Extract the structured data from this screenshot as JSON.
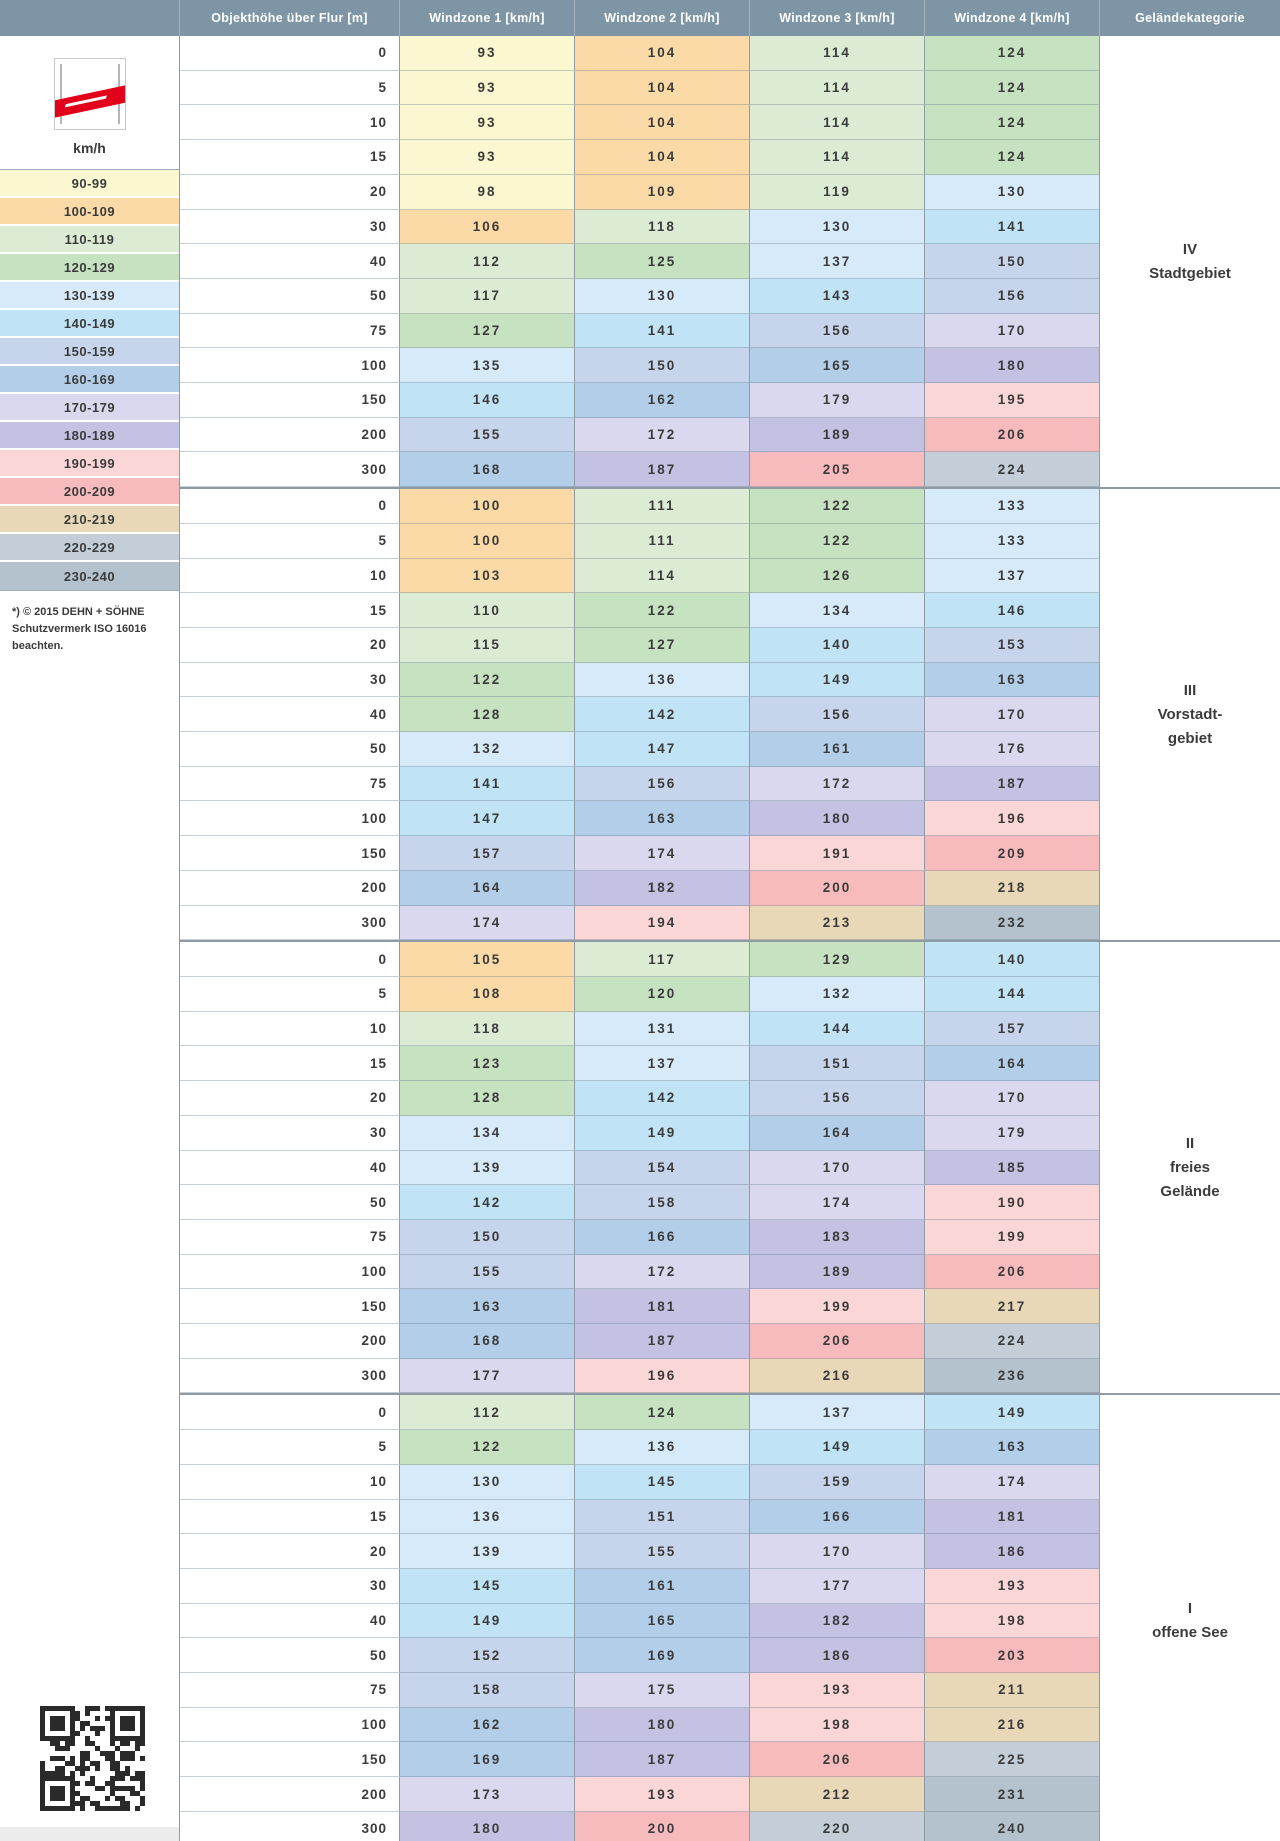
{
  "header": {
    "columns": [
      "Objekthöhe über Flur [m]",
      "Windzone 1 [km/h]",
      "Windzone 2 [km/h]",
      "Windzone 3 [km/h]",
      "Windzone 4 [km/h]",
      "Geländekategorie"
    ],
    "bg_color": "#7d95a4"
  },
  "sidebar": {
    "logo": "dehn-red-band-logo",
    "unit_label": "km/h",
    "legend": [
      {
        "range": "90-99",
        "min": 90,
        "max": 99,
        "color": "#fbf8d1"
      },
      {
        "range": "100-109",
        "min": 100,
        "max": 109,
        "color": "#fbdaa7"
      },
      {
        "range": "110-119",
        "min": 110,
        "max": 119,
        "color": "#dcecd4"
      },
      {
        "range": "120-129",
        "min": 120,
        "max": 129,
        "color": "#c6e2c1"
      },
      {
        "range": "130-139",
        "min": 130,
        "max": 139,
        "color": "#d7eafa"
      },
      {
        "range": "140-149",
        "min": 140,
        "max": 149,
        "color": "#c0e3f6"
      },
      {
        "range": "150-159",
        "min": 150,
        "max": 159,
        "color": "#c7d5ec"
      },
      {
        "range": "160-169",
        "min": 160,
        "max": 169,
        "color": "#b3cee9"
      },
      {
        "range": "170-179",
        "min": 170,
        "max": 179,
        "color": "#d9d8ef"
      },
      {
        "range": "180-189",
        "min": 180,
        "max": 189,
        "color": "#c4c2e2"
      },
      {
        "range": "190-199",
        "min": 190,
        "max": 199,
        "color": "#fbd6d7"
      },
      {
        "range": "200-209",
        "min": 200,
        "max": 209,
        "color": "#f8bbbd"
      },
      {
        "range": "210-219",
        "min": 210,
        "max": 219,
        "color": "#e9d8b8"
      },
      {
        "range": "220-229",
        "min": 220,
        "max": 229,
        "color": "#c3ced8"
      },
      {
        "range": "230-240",
        "min": 230,
        "max": 240,
        "color": "#b3c2cc"
      }
    ],
    "copyright_lines": [
      "*) © 2015 DEHN + SÖHNE",
      "Schutzvermerk ISO 16016",
      "beachten."
    ]
  },
  "table": {
    "heights": [
      0,
      5,
      10,
      15,
      20,
      30,
      40,
      50,
      75,
      100,
      150,
      200,
      300
    ],
    "sections": [
      {
        "category_lines": [
          "IV",
          "Stadtgebiet"
        ],
        "wz1": [
          93,
          93,
          93,
          93,
          98,
          106,
          112,
          117,
          127,
          135,
          146,
          155,
          168
        ],
        "wz2": [
          104,
          104,
          104,
          104,
          109,
          118,
          125,
          130,
          141,
          150,
          162,
          172,
          187
        ],
        "wz3": [
          114,
          114,
          114,
          114,
          119,
          130,
          137,
          143,
          156,
          165,
          179,
          189,
          205
        ],
        "wz4": [
          124,
          124,
          124,
          124,
          130,
          141,
          150,
          156,
          170,
          180,
          195,
          206,
          224
        ]
      },
      {
        "category_lines": [
          "III",
          "Vorstadt-",
          "gebiet"
        ],
        "wz1": [
          100,
          100,
          103,
          110,
          115,
          122,
          128,
          132,
          141,
          147,
          157,
          164,
          174
        ],
        "wz2": [
          111,
          111,
          114,
          122,
          127,
          136,
          142,
          147,
          156,
          163,
          174,
          182,
          194
        ],
        "wz3": [
          122,
          122,
          126,
          134,
          140,
          149,
          156,
          161,
          172,
          180,
          191,
          200,
          213
        ],
        "wz4": [
          133,
          133,
          137,
          146,
          153,
          163,
          170,
          176,
          187,
          196,
          209,
          218,
          232
        ]
      },
      {
        "category_lines": [
          "II",
          "freies",
          "Gelände"
        ],
        "wz1": [
          105,
          108,
          118,
          123,
          128,
          134,
          139,
          142,
          150,
          155,
          163,
          168,
          177
        ],
        "wz2": [
          117,
          120,
          131,
          137,
          142,
          149,
          154,
          158,
          166,
          172,
          181,
          187,
          196
        ],
        "wz3": [
          129,
          132,
          144,
          151,
          156,
          164,
          170,
          174,
          183,
          189,
          199,
          206,
          216
        ],
        "wz4": [
          140,
          144,
          157,
          164,
          170,
          179,
          185,
          190,
          199,
          206,
          217,
          224,
          236
        ]
      },
      {
        "category_lines": [
          "I",
          "offene See"
        ],
        "wz1": [
          112,
          122,
          130,
          136,
          139,
          145,
          149,
          152,
          158,
          162,
          169,
          173,
          180
        ],
        "wz2": [
          124,
          136,
          145,
          151,
          155,
          161,
          165,
          169,
          175,
          180,
          187,
          193,
          200
        ],
        "wz3": [
          137,
          149,
          159,
          166,
          170,
          177,
          182,
          186,
          193,
          198,
          206,
          212,
          220
        ],
        "wz4": [
          149,
          163,
          174,
          181,
          186,
          193,
          198,
          203,
          211,
          216,
          225,
          231,
          240
        ]
      }
    ]
  }
}
